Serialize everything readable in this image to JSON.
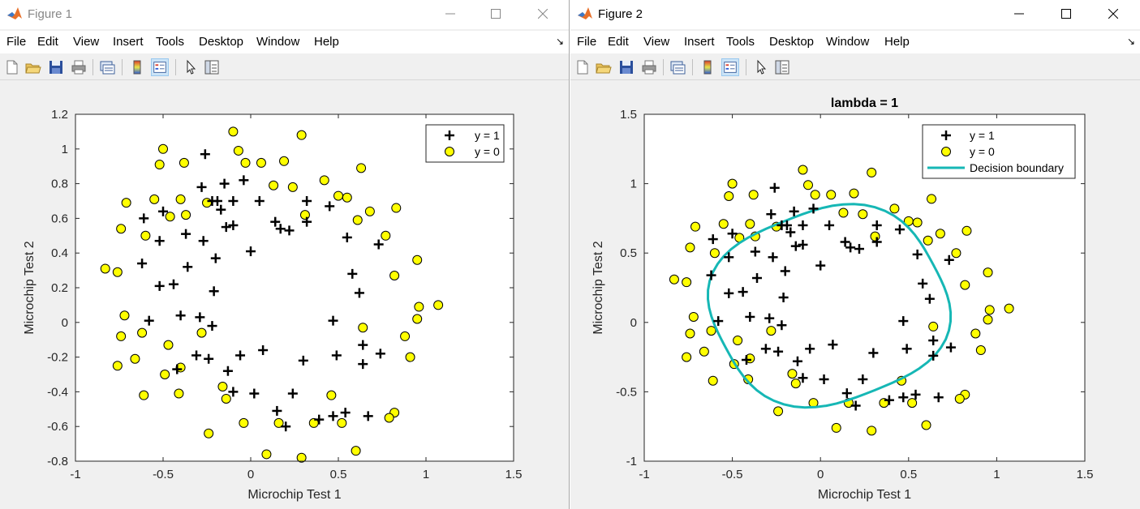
{
  "windows": [
    {
      "title": "Figure 1",
      "menu": [
        "File",
        "Edit",
        "View",
        "Insert",
        "Tools",
        "Desktop",
        "Window",
        "Help"
      ],
      "toolbar_icons": [
        "new-figure-icon",
        "open-file-icon",
        "save-icon",
        "print-icon",
        "link-plot-icon",
        "insert-colorbar-icon",
        "insert-legend-icon",
        "edit-plot-icon",
        "property-inspector-icon"
      ]
    },
    {
      "title": "Figure 2",
      "menu": [
        "File",
        "Edit",
        "View",
        "Insert",
        "Tools",
        "Desktop",
        "Window",
        "Help"
      ],
      "toolbar_icons": [
        "new-figure-icon",
        "open-file-icon",
        "save-icon",
        "print-icon",
        "link-plot-icon",
        "insert-colorbar-icon",
        "insert-legend-icon",
        "edit-plot-icon",
        "property-inspector-icon"
      ]
    }
  ],
  "colors": {
    "negative_fill": "#ffff00",
    "boundary": "#16b7b5",
    "axes_bg": "#ffffff",
    "figure_bg": "#f0f0f0"
  },
  "chart_data": [
    {
      "type": "scatter",
      "title": "",
      "xlabel": "Microchip Test 1",
      "ylabel": "Microchip Test 2",
      "xlim": [
        -1,
        1.5
      ],
      "ylim": [
        -0.8,
        1.2
      ],
      "xticks": [
        "-1",
        "-0.5",
        "0",
        "0.5",
        "1",
        "1.5"
      ],
      "yticks": [
        "-0.8",
        "-0.6",
        "-0.4",
        "-0.2",
        "0",
        "0.2",
        "0.4",
        "0.6",
        "0.8",
        "1",
        "1.2"
      ],
      "xtick_values": [
        -1,
        -0.5,
        0,
        0.5,
        1,
        1.5
      ],
      "ytick_values": [
        -0.8,
        -0.6,
        -0.4,
        -0.2,
        0,
        0.2,
        0.4,
        0.6,
        0.8,
        1,
        1.2
      ],
      "legend": [
        "y = 1",
        "y = 0"
      ],
      "legend_position": "top-right",
      "grid": false
    },
    {
      "type": "scatter",
      "title": "lambda = 1",
      "xlabel": "Microchip Test 1",
      "ylabel": "Microchip Test 2",
      "xlim": [
        -1,
        1.5
      ],
      "ylim": [
        -1,
        1.5
      ],
      "xticks": [
        "-1",
        "-0.5",
        "0",
        "0.5",
        "1",
        "1.5"
      ],
      "yticks": [
        "-1",
        "-0.5",
        "0",
        "0.5",
        "1",
        "1.5"
      ],
      "xtick_values": [
        -1,
        -0.5,
        0,
        0.5,
        1,
        1.5
      ],
      "ytick_values": [
        -1,
        -0.5,
        0,
        0.5,
        1,
        1.5
      ],
      "legend": [
        "y = 1",
        "y = 0",
        "Decision boundary"
      ],
      "legend_position": "top-right",
      "grid": false
    }
  ],
  "shared_series": {
    "y1": [
      [
        -0.61,
        0.6
      ],
      [
        -0.5,
        0.64
      ],
      [
        -0.52,
        0.47
      ],
      [
        -0.62,
        0.34
      ],
      [
        -0.58,
        0.01
      ],
      [
        -0.52,
        0.21
      ],
      [
        -0.44,
        0.22
      ],
      [
        -0.4,
        0.04
      ],
      [
        -0.37,
        0.51
      ],
      [
        -0.36,
        0.32
      ],
      [
        -0.28,
        0.78
      ],
      [
        -0.27,
        0.47
      ],
      [
        -0.26,
        0.97
      ],
      [
        -0.22,
        0.7
      ],
      [
        -0.2,
        0.37
      ],
      [
        -0.21,
        0.18
      ],
      [
        -0.19,
        0.7
      ],
      [
        -0.17,
        0.65
      ],
      [
        -0.15,
        0.8
      ],
      [
        -0.14,
        0.55
      ],
      [
        -0.1,
        0.7
      ],
      [
        -0.1,
        0.56
      ],
      [
        -0.04,
        0.82
      ],
      [
        0.0,
        0.41
      ],
      [
        0.05,
        0.7
      ],
      [
        0.14,
        0.58
      ],
      [
        0.17,
        0.54
      ],
      [
        0.22,
        0.53
      ],
      [
        0.32,
        0.7
      ],
      [
        0.32,
        0.58
      ],
      [
        0.45,
        0.67
      ],
      [
        0.55,
        0.49
      ],
      [
        0.58,
        0.28
      ],
      [
        0.62,
        0.17
      ],
      [
        0.73,
        0.45
      ],
      [
        -0.42,
        -0.27
      ],
      [
        -0.29,
        0.03
      ],
      [
        -0.31,
        -0.19
      ],
      [
        -0.24,
        -0.21
      ],
      [
        -0.22,
        -0.02
      ],
      [
        -0.13,
        -0.28
      ],
      [
        -0.1,
        -0.4
      ],
      [
        -0.06,
        -0.19
      ],
      [
        0.02,
        -0.41
      ],
      [
        0.07,
        -0.16
      ],
      [
        0.15,
        -0.51
      ],
      [
        0.2,
        -0.6
      ],
      [
        0.24,
        -0.41
      ],
      [
        0.3,
        -0.22
      ],
      [
        0.39,
        -0.56
      ],
      [
        0.47,
        0.01
      ],
      [
        0.47,
        -0.54
      ],
      [
        0.49,
        -0.19
      ],
      [
        0.54,
        -0.52
      ],
      [
        0.64,
        -0.13
      ],
      [
        0.64,
        -0.24
      ],
      [
        0.67,
        -0.54
      ],
      [
        0.74,
        -0.18
      ]
    ],
    "y0": [
      [
        -0.83,
        0.31
      ],
      [
        -0.76,
        0.29
      ],
      [
        -0.74,
        0.54
      ],
      [
        -0.71,
        0.69
      ],
      [
        -0.72,
        0.04
      ],
      [
        -0.74,
        -0.08
      ],
      [
        -0.66,
        -0.21
      ],
      [
        -0.76,
        -0.25
      ],
      [
        -0.61,
        -0.42
      ],
      [
        -0.62,
        -0.06
      ],
      [
        -0.6,
        0.5
      ],
      [
        -0.55,
        0.71
      ],
      [
        -0.5,
        1.0
      ],
      [
        -0.52,
        0.91
      ],
      [
        -0.46,
        0.61
      ],
      [
        -0.4,
        0.71
      ],
      [
        -0.38,
        0.92
      ],
      [
        -0.37,
        0.62
      ],
      [
        -0.25,
        0.69
      ],
      [
        -0.07,
        0.99
      ],
      [
        -0.1,
        1.1
      ],
      [
        -0.03,
        0.92
      ],
      [
        0.06,
        0.92
      ],
      [
        0.13,
        0.79
      ],
      [
        0.24,
        0.78
      ],
      [
        0.19,
        0.93
      ],
      [
        0.29,
        1.08
      ],
      [
        0.31,
        0.62
      ],
      [
        0.42,
        0.82
      ],
      [
        0.5,
        0.73
      ],
      [
        0.55,
        0.72
      ],
      [
        0.61,
        0.59
      ],
      [
        0.68,
        0.64
      ],
      [
        0.63,
        0.89
      ],
      [
        0.77,
        0.5
      ],
      [
        0.83,
        0.66
      ],
      [
        0.82,
        0.27
      ],
      [
        0.95,
        0.36
      ],
      [
        0.95,
        0.02
      ],
      [
        0.96,
        0.09
      ],
      [
        1.07,
        0.1
      ],
      [
        0.88,
        -0.08
      ],
      [
        0.91,
        -0.2
      ],
      [
        0.82,
        -0.52
      ],
      [
        0.79,
        -0.55
      ],
      [
        0.64,
        -0.03
      ],
      [
        0.52,
        -0.58
      ],
      [
        0.6,
        -0.74
      ],
      [
        0.46,
        -0.42
      ],
      [
        0.36,
        -0.58
      ],
      [
        0.29,
        -0.78
      ],
      [
        0.16,
        -0.58
      ],
      [
        0.09,
        -0.76
      ],
      [
        -0.04,
        -0.58
      ],
      [
        -0.16,
        -0.37
      ],
      [
        -0.14,
        -0.44
      ],
      [
        -0.28,
        -0.06
      ],
      [
        -0.24,
        -0.64
      ],
      [
        -0.41,
        -0.41
      ],
      [
        -0.4,
        -0.26
      ],
      [
        -0.47,
        -0.13
      ],
      [
        -0.49,
        -0.3
      ]
    ]
  }
}
